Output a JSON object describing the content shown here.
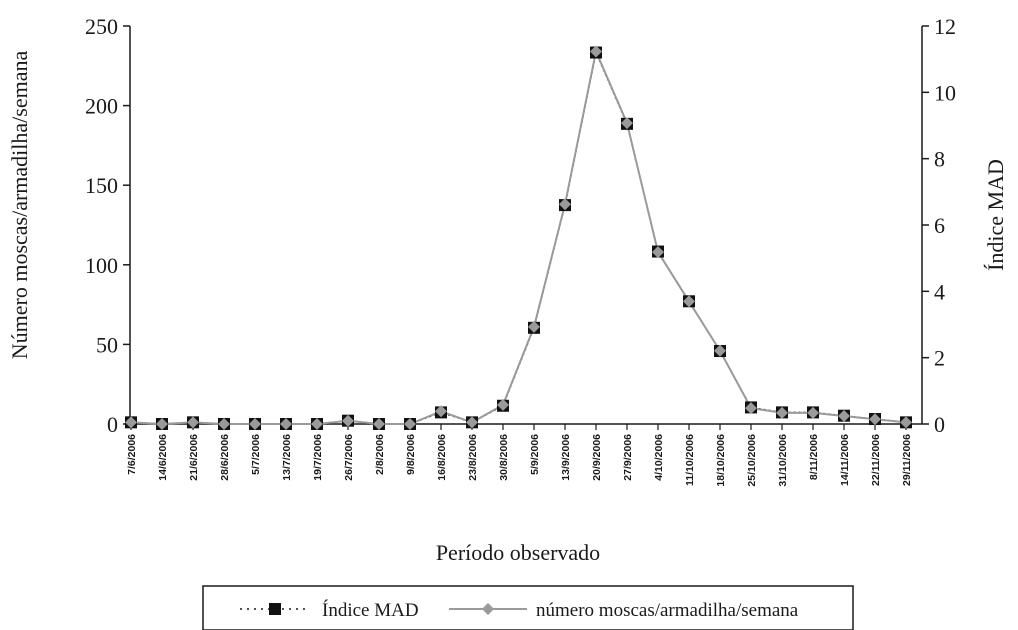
{
  "chart_data": {
    "type": "line",
    "xlabel": "Período observado",
    "ylabel_left": "Número moscas/armadilha/semana",
    "ylabel_right": "Índice MAD",
    "y_left_lim": [
      0,
      250
    ],
    "y_left_ticks": [
      0,
      50,
      100,
      150,
      200,
      250
    ],
    "y_right_lim": [
      0,
      12
    ],
    "y_right_ticks": [
      0,
      2,
      4,
      6,
      8,
      10,
      12
    ],
    "grid": false,
    "legend_position": "bottom",
    "categories": [
      "7/6/2006",
      "14/6/2006",
      "21/6/2006",
      "28/6/2006",
      "5/7/2006",
      "13/7/2006",
      "19/7/2006",
      "26/7/2006",
      "2/8/2006",
      "9/8/2006",
      "16/8/2006",
      "23/8/2006",
      "30/8/2006",
      "5/9/2006",
      "13/9/2006",
      "20/9/2006",
      "27/9/2006",
      "4/10/2006",
      "11/10/2006",
      "18/10/2006",
      "25/10/2006",
      "31/10/2006",
      "8/11/2006",
      "14/11/2006",
      "22/11/2006",
      "29/11/2006"
    ],
    "series": [
      {
        "name": "Índice MAD",
        "axis": "right",
        "marker": "square",
        "color": "#1a1a1a",
        "values": [
          0.05,
          0.0,
          0.05,
          0.0,
          0.0,
          0.0,
          0.0,
          0.1,
          0.0,
          0.0,
          0.35,
          0.05,
          0.55,
          2.9,
          6.6,
          11.2,
          9.05,
          5.2,
          3.7,
          2.2,
          0.5,
          0.35,
          0.35,
          0.25,
          0.15,
          0.05
        ]
      },
      {
        "name": "número moscas/armadilha/semana",
        "axis": "left",
        "marker": "diamond",
        "color": "#9a9a9a",
        "values": [
          1,
          0,
          1,
          0,
          0,
          0,
          0,
          2,
          0,
          0,
          8,
          1,
          12,
          61,
          138,
          234,
          189,
          108,
          77,
          46,
          10,
          7,
          7,
          5,
          3,
          1
        ]
      }
    ]
  }
}
